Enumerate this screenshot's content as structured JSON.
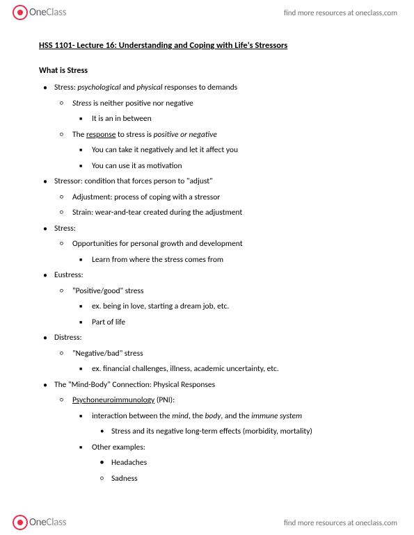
{
  "brand": {
    "part1": "One",
    "part2": "Class"
  },
  "resources_link": "find more resources at oneclass.com",
  "title": "HSS 1101- Lecture 16: Understanding and Coping with Life's Stressors",
  "section_head": "What is Stress",
  "b1": {
    "pre": "Stress: ",
    "i1": "psychological",
    "mid": " and ",
    "i2": "physical",
    "post": " responses to demands",
    "s1": {
      "i": "Stress",
      "t": " is neither positive nor negative",
      "c1": "It is an in between"
    },
    "s2": {
      "pre": "The ",
      "u": "response",
      "mid": " to stress is ",
      "i": "positive or negative",
      "c1": "You can take it negatively and let it affect you",
      "c2": "You can use it as motivation"
    }
  },
  "b2": {
    "t": "Stressor: condition that forces person to \"adjust\"",
    "s1": "Adjustment: process of coping with a stressor",
    "s2": "Strain: wear-and-tear created during the adjustment"
  },
  "b3": {
    "t": "Stress:",
    "s1": "Opportunities for personal growth and development",
    "c1": "Learn from where the stress comes from"
  },
  "b4": {
    "t": "Eustress:",
    "s1": "\"Positive/good\" stress",
    "c1": "ex. being in love, starting a dream job, etc.",
    "c2": "Part of life"
  },
  "b5": {
    "t": "Distress:",
    "s1": "\"Negative/bad\" stress",
    "c1": "ex. financial challenges, illness, academic uncertainty, etc."
  },
  "b6": {
    "t": "The \"Mind-Body\" Connection: Physical Responses",
    "s1": {
      "u": "Psychoneuroimmunology",
      "t": " (PNI):"
    },
    "c1": {
      "pre": "interaction between the ",
      "i1": "mind",
      "m1": ", the ",
      "i2": "body",
      "m2": ", and the ",
      "i3": "immune system"
    },
    "d1": "Stress and its negative long-term effects (morbidity, mortality)",
    "c2": "Other examples:",
    "e1": "Headaches",
    "e2": "Sadness"
  }
}
